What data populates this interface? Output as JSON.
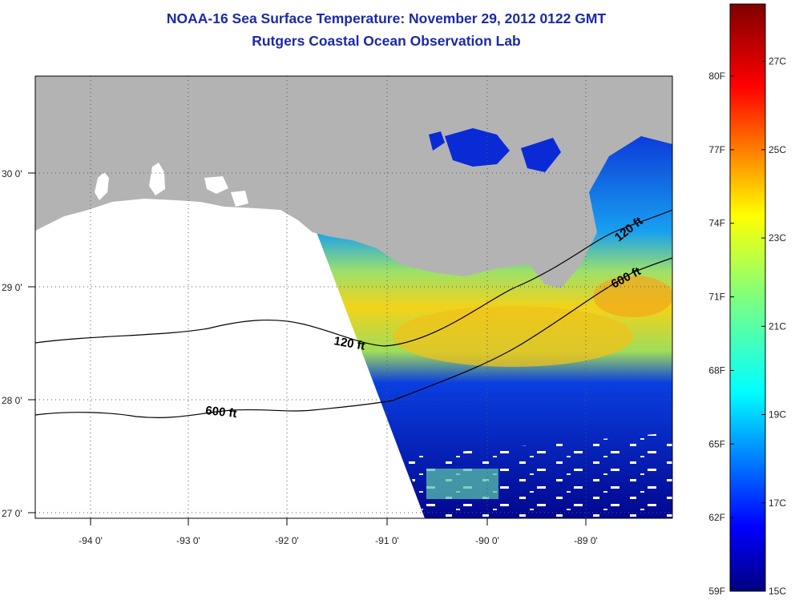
{
  "header": {
    "title": "NOAA-16 Sea Surface Temperature:  November 29, 2012 0122 GMT",
    "subtitle": "Rutgers Coastal Ocean Observation Lab"
  },
  "map": {
    "lon_ticks": [
      "-94 0'",
      "-93 0'",
      "-92 0'",
      "-91 0'",
      "-90 0'",
      "-89 0'"
    ],
    "lat_ticks": [
      "30 0'",
      "29 0'",
      "28 0'",
      "27 0'"
    ],
    "contours": [
      {
        "label": "120 ft"
      },
      {
        "label": "600 ft"
      },
      {
        "label": "120 ft"
      },
      {
        "label": "600 ft"
      }
    ],
    "colors": {
      "land": "#b3b3b3",
      "no_data": "#ffffff",
      "cold": "#00007f",
      "warm": "#ffd000"
    }
  },
  "colorbar": {
    "fahrenheit": [
      "80F",
      "77F",
      "74F",
      "71F",
      "68F",
      "65F",
      "62F",
      "59F"
    ],
    "celsius": [
      "27C",
      "25C",
      "23C",
      "21C",
      "19C",
      "17C",
      "15C"
    ],
    "colormap": "jet"
  }
}
